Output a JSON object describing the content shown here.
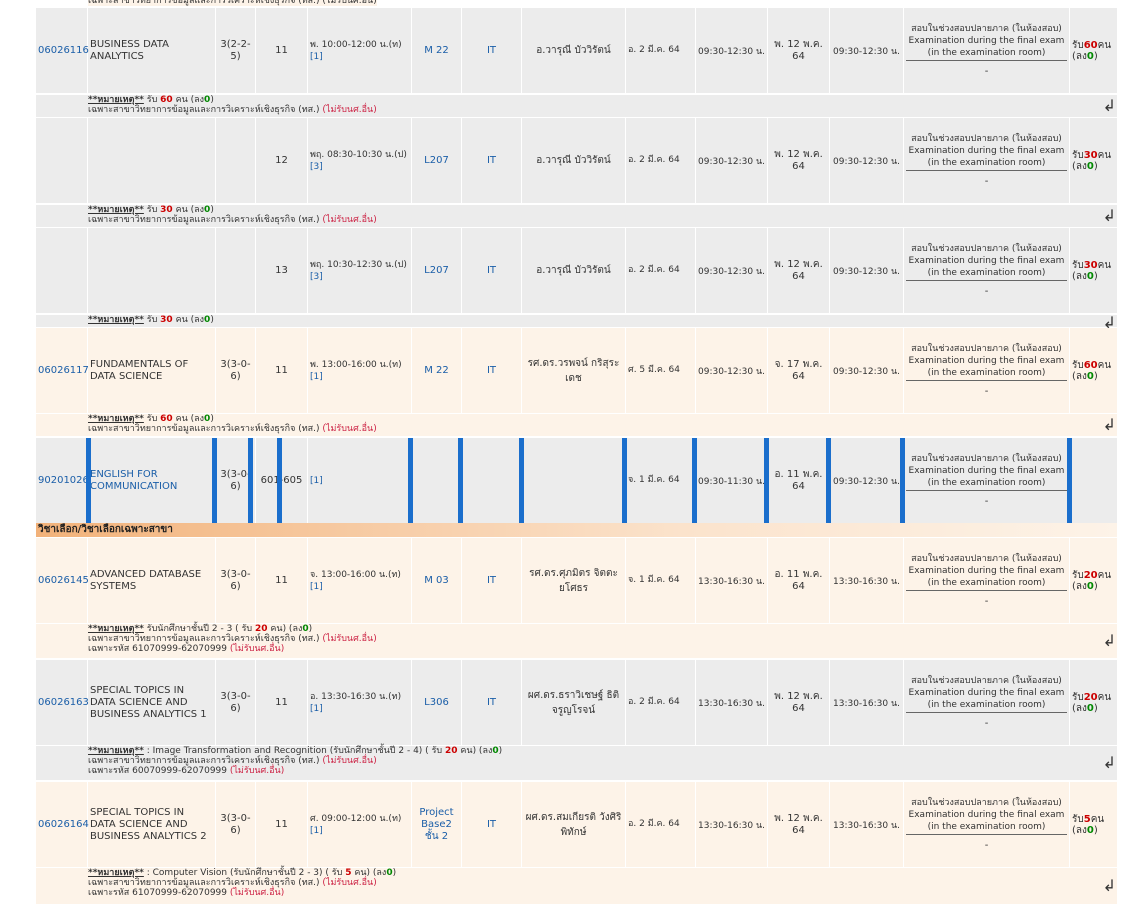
{
  "colors": {
    "row_gray": "#ececec",
    "row_cream": "#fdf3e8",
    "group_header": "#f2b27a",
    "selection_blue": "#1a6ecc",
    "accent_red": "#cc0000",
    "accent_green": "#008800"
  },
  "top_partial_note": "เฉพาะสาขาวิทยาการข้อมูลและการวิเคราะห์เชิงธุรกิจ (ทส.) (ไม่รับนศ.อื่น)",
  "group_header": "วิชาเลือก/วิชาเลือกเฉพาะสาขา",
  "exam_text": {
    "a": "สอบในช่วงสอบปลายภาค (ในห้องสอบ)",
    "b": "Examination during the final exam",
    "c": "(in the examination room)",
    "dash": "-"
  },
  "note_label": "**หมายเหตุ**",
  "rows": [
    {
      "code": "06026116",
      "name": "BUSINESS DATA ANALYTICS",
      "credit": "3(2-2-5)",
      "sec": "11",
      "time": "พ. 10:00-12:00 น.(ท)",
      "time_ref": "[1]",
      "room": "M 22",
      "bld": "IT",
      "instr": "อ.วารุณี บัววิรัตน์",
      "midterm_date": "อ. 2 มี.ค. 64",
      "midterm_time": "09:30-12:30 น.",
      "final_date": "พ. 12 พ.ค. 64",
      "final_time": "09:30-12:30 น.",
      "accept_pre": "รับ",
      "accept_num": "60",
      "accept_unit": "คน",
      "enrolled_pre": "(ลง",
      "enrolled_num": "0",
      "enrolled_post": ")",
      "note_accept_pre": "รับ",
      "note_accept_num": "60",
      "note_accept_post": "คน (ลง",
      "note_enr": "0",
      "note_close": ")",
      "note_line2": "เฉพาะสาขาวิทยาการข้อมูลและการวิเคราะห์เชิงธุรกิจ (ทส.)",
      "note_line2_red": "(ไม่รับนศ.อื่น)"
    },
    {
      "code": "",
      "name": "",
      "credit": "",
      "sec": "12",
      "time": "พฤ. 08:30-10:30 น.(ป)",
      "time_ref": "[3]",
      "room": "L207",
      "bld": "IT",
      "instr": "อ.วารุณี บัววิรัตน์",
      "midterm_date": "อ. 2 มี.ค. 64",
      "midterm_time": "09:30-12:30 น.",
      "final_date": "พ. 12 พ.ค. 64",
      "final_time": "09:30-12:30 น.",
      "accept_pre": "รับ",
      "accept_num": "30",
      "accept_unit": "คน",
      "enrolled_pre": "(ลง",
      "enrolled_num": "0",
      "enrolled_post": ")",
      "note_accept_pre": "รับ",
      "note_accept_num": "30",
      "note_accept_post": "คน (ลง",
      "note_enr": "0",
      "note_close": ")",
      "note_line2": "เฉพาะสาขาวิทยาการข้อมูลและการวิเคราะห์เชิงธุรกิจ (ทส.)",
      "note_line2_red": "(ไม่รับนศ.อื่น)"
    },
    {
      "code": "",
      "name": "",
      "credit": "",
      "sec": "13",
      "time": "พฤ. 10:30-12:30 น.(ป)",
      "time_ref": "[3]",
      "room": "L207",
      "bld": "IT",
      "instr": "อ.วารุณี บัววิรัตน์",
      "midterm_date": "อ. 2 มี.ค. 64",
      "midterm_time": "09:30-12:30 น.",
      "final_date": "พ. 12 พ.ค. 64",
      "final_time": "09:30-12:30 น.",
      "accept_pre": "รับ",
      "accept_num": "30",
      "accept_unit": "คน",
      "enrolled_pre": "(ลง",
      "enrolled_num": "0",
      "enrolled_post": ")",
      "note_accept_pre": "รับ",
      "note_accept_num": "30",
      "note_accept_post": "คน (ลง",
      "note_enr": "0",
      "note_close": ")",
      "note_line2": "",
      "note_line2_red": ""
    },
    {
      "code": "06026117",
      "name": "FUNDAMENTALS OF DATA SCIENCE",
      "credit": "3(3-0-6)",
      "sec": "11",
      "time": "พ. 13:00-16:00 น.(ท)",
      "time_ref": "[1]",
      "room": "M 22",
      "bld": "IT",
      "instr": "รศ.ดร.วรพจน์ กริสุระเดช",
      "midterm_date": "ศ. 5 มี.ค. 64",
      "midterm_time": "09:30-12:30 น.",
      "final_date": "จ. 17 พ.ค. 64",
      "final_time": "09:30-12:30 น.",
      "accept_pre": "รับ",
      "accept_num": "60",
      "accept_unit": "คน",
      "enrolled_pre": "(ลง",
      "enrolled_num": "0",
      "enrolled_post": ")",
      "note_accept_pre": "รับ",
      "note_accept_num": "60",
      "note_accept_post": "คน (ลง",
      "note_enr": "0",
      "note_close": ")",
      "note_line2": "เฉพาะสาขาวิทยาการข้อมูลและการวิเคราะห์เชิงธุรกิจ (ทส.)",
      "note_line2_red": "(ไม่รับนศ.อื่น)"
    },
    {
      "code": "90201026",
      "name": "ENGLISH FOR COMMUNICATION",
      "credit": "3(3-0-6)",
      "sec": "601-605",
      "time": "",
      "time_ref": "[1]",
      "room": "",
      "bld": "",
      "instr": "",
      "midterm_date": "จ. 1 มี.ค. 64",
      "midterm_time": "09:30-11:30 น.",
      "final_date": "อ. 11 พ.ค. 64",
      "final_time": "09:30-12:30 น.",
      "accept_pre": "",
      "accept_num": "",
      "accept_unit": "",
      "enrolled_pre": "",
      "enrolled_num": "",
      "enrolled_post": ""
    },
    {
      "code": "06026145",
      "name": "ADVANCED DATABASE SYSTEMS",
      "credit": "3(3-0-6)",
      "sec": "11",
      "time": "จ. 13:00-16:00 น.(ท)",
      "time_ref": "[1]",
      "room": "M 03",
      "bld": "IT",
      "instr": "รศ.ดร.ศุภมิตร จิตตะยโศธร",
      "midterm_date": "จ. 1 มี.ค. 64",
      "midterm_time": "13:30-16:30 น.",
      "final_date": "อ. 11 พ.ค. 64",
      "final_time": "13:30-16:30 น.",
      "accept_pre": "รับ",
      "accept_num": "20",
      "accept_unit": "คน",
      "enrolled_pre": "(ลง",
      "enrolled_num": "0",
      "enrolled_post": ")",
      "note_pre": "รับนักศึกษาชั้นปี 2 - 3 (",
      "note_accept_pre": "รับ",
      "note_accept_num": "20",
      "note_accept_post": "คน) (ลง",
      "note_enr": "0",
      "note_close": ")",
      "note_line2": "เฉพาะสาขาวิทยาการข้อมูลและการวิเคราะห์เชิงธุรกิจ (ทส.)",
      "note_line2_red": "(ไม่รับนศ.อื่น)",
      "note_line3": "เฉพาะรหัส 61070999-62070999",
      "note_line3_red": "(ไม่รับนศ.อื่น)"
    },
    {
      "code": "06026163",
      "name": "SPECIAL TOPICS IN DATA SCIENCE AND BUSINESS ANALYTICS 1",
      "credit": "3(3-0-6)",
      "sec": "11",
      "time": "อ. 13:30-16:30 น.(ท)",
      "time_ref": "[1]",
      "room": "L306",
      "bld": "IT",
      "instr": "ผศ.ดร.ธราวิเชษฐ์ ธิติจรูญโรจน์",
      "midterm_date": "อ. 2 มี.ค. 64",
      "midterm_time": "13:30-16:30 น.",
      "final_date": "พ. 12 พ.ค. 64",
      "final_time": "13:30-16:30 น.",
      "accept_pre": "รับ",
      "accept_num": "20",
      "accept_unit": "คน",
      "enrolled_pre": "(ลง",
      "enrolled_num": "0",
      "enrolled_post": ")",
      "note_pre": ": Image Transformation and Recognition (รับนักศึกษาชั้นปี 2 - 4) (",
      "note_accept_pre": "รับ",
      "note_accept_num": "20",
      "note_accept_post": "คน) (ลง",
      "note_enr": "0",
      "note_close": ")",
      "note_line2": "เฉพาะสาขาวิทยาการข้อมูลและการวิเคราะห์เชิงธุรกิจ (ทส.)",
      "note_line2_red": "(ไม่รับนศ.อื่น)",
      "note_line3": "เฉพาะรหัส 60070999-62070999",
      "note_line3_red": "(ไม่รับนศ.อื่น)"
    },
    {
      "code": "06026164",
      "name": "SPECIAL TOPICS IN DATA SCIENCE AND BUSINESS ANALYTICS 2",
      "credit": "3(3-0-6)",
      "sec": "11",
      "time": "ศ. 09:00-12:00 น.(ท)",
      "time_ref": "[1]",
      "room": "Project Base2 ชั้น 2",
      "bld": "IT",
      "instr": "ผศ.ดร.สมเกียรติ วังศิริพิทักษ์",
      "midterm_date": "อ. 2 มี.ค. 64",
      "midterm_time": "13:30-16:30 น.",
      "final_date": "พ. 12 พ.ค. 64",
      "final_time": "13:30-16:30 น.",
      "accept_pre": "รับ",
      "accept_num": "5",
      "accept_unit": "คน",
      "enrolled_pre": "(ลง",
      "enrolled_num": "0",
      "enrolled_post": ")",
      "note_pre": ": Computer Vision (รับนักศึกษาชั้นปี 2 - 3) (",
      "note_accept_pre": "รับ",
      "note_accept_num": "5",
      "note_accept_post": "คน) (ลง",
      "note_enr": "0",
      "note_close": ")",
      "note_line2": "เฉพาะสาขาวิทยาการข้อมูลและการวิเคราะห์เชิงธุรกิจ (ทส.)",
      "note_line2_red": "(ไม่รับนศ.อื่น)",
      "note_line3": "เฉพาะรหัส 61070999-62070999",
      "note_line3_red": "(ไม่รับนศ.อื่น)"
    }
  ]
}
